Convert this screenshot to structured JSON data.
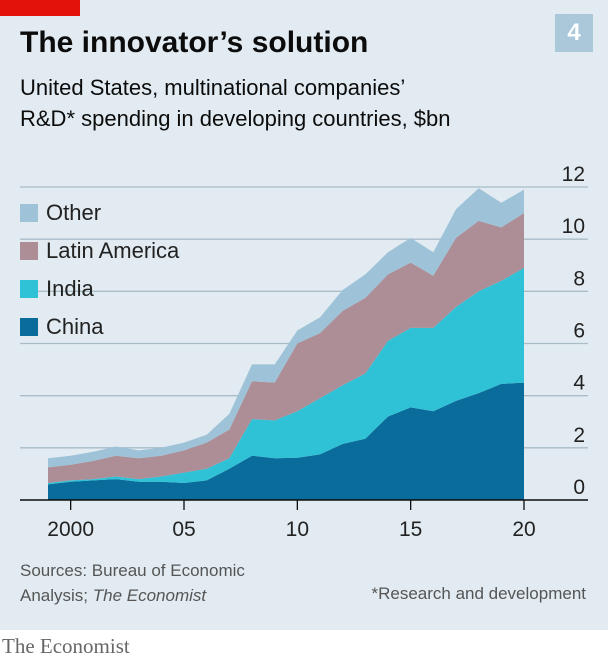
{
  "header": {
    "badge": "4",
    "title": "The innovator’s solution",
    "subtitle_line1": "United States, multinational companies’",
    "subtitle_line2": "R&D* spending in developing countries, $bn"
  },
  "legend": [
    {
      "label": "Other",
      "color": "#9ec2d7"
    },
    {
      "label": "Latin America",
      "color": "#ad8d96"
    },
    {
      "label": "India",
      "color": "#2fc1d6"
    },
    {
      "label": "China",
      "color": "#0a6c9a"
    }
  ],
  "chart_data": {
    "type": "area",
    "stacked": true,
    "x": [
      1999,
      2000,
      2001,
      2002,
      2003,
      2004,
      2005,
      2006,
      2007,
      2008,
      2009,
      2010,
      2011,
      2012,
      2013,
      2014,
      2015,
      2016,
      2017,
      2018,
      2019,
      2020
    ],
    "series": [
      {
        "name": "China",
        "color": "#0a6c9a",
        "values": [
          0.6,
          0.7,
          0.75,
          0.8,
          0.7,
          0.7,
          0.65,
          0.75,
          1.2,
          1.7,
          1.6,
          1.62,
          1.75,
          2.15,
          2.35,
          3.2,
          3.55,
          3.4,
          3.8,
          4.1,
          4.45,
          4.5
        ]
      },
      {
        "name": "India",
        "color": "#2fc1d6",
        "values": [
          0.05,
          0.05,
          0.05,
          0.1,
          0.1,
          0.2,
          0.4,
          0.45,
          0.4,
          1.4,
          1.45,
          1.78,
          2.15,
          2.25,
          2.5,
          2.9,
          3.05,
          3.2,
          3.6,
          3.9,
          3.95,
          4.4
        ]
      },
      {
        "name": "Latin America",
        "color": "#ad8d96",
        "values": [
          0.6,
          0.6,
          0.7,
          0.8,
          0.8,
          0.8,
          0.85,
          1.0,
          1.1,
          1.45,
          1.45,
          2.6,
          2.5,
          2.85,
          2.9,
          2.55,
          2.5,
          2.0,
          2.65,
          2.7,
          2.05,
          2.1
        ]
      },
      {
        "name": "Other",
        "color": "#9ec2d7",
        "values": [
          0.35,
          0.35,
          0.35,
          0.35,
          0.3,
          0.3,
          0.3,
          0.3,
          0.6,
          0.65,
          0.7,
          0.5,
          0.6,
          0.8,
          0.9,
          0.85,
          0.95,
          0.9,
          1.1,
          1.25,
          0.95,
          0.9
        ]
      }
    ],
    "x_ticks": [
      {
        "value": 2000,
        "label": "2000"
      },
      {
        "value": 2005,
        "label": "05"
      },
      {
        "value": 2010,
        "label": "10"
      },
      {
        "value": 2015,
        "label": "15"
      },
      {
        "value": 2020,
        "label": "20"
      }
    ],
    "y_ticks": [
      0,
      2,
      4,
      6,
      8,
      10,
      12
    ],
    "xlim": [
      1999,
      2020
    ],
    "ylim": [
      0,
      12
    ],
    "grid": true,
    "y_axis_side": "right",
    "legend_position": "top-left"
  },
  "source": {
    "line1": "Sources: Bureau of Economic",
    "line2_prefix": "Analysis; ",
    "line2_italic": "The Economist"
  },
  "footnote": "*Research and development",
  "brand": "The Economist"
}
